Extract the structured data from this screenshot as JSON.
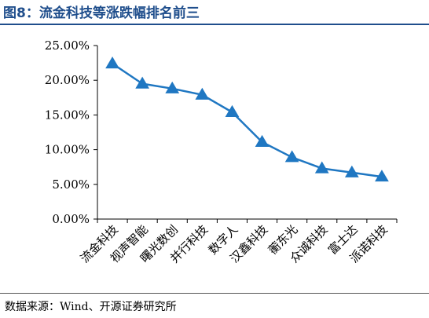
{
  "figure": {
    "title": "图8：流金科技等涨跌幅排名前三",
    "source": "数据来源：Wind、开源证券研究所"
  },
  "colors": {
    "title": "#1f4e8c",
    "series": "#1f77c2"
  },
  "chart_data": {
    "type": "line",
    "title": "",
    "xlabel": "",
    "ylabel": "",
    "categories": [
      "流金科技",
      "视声智能",
      "曙光数创",
      "并行科技",
      "数字人",
      "汉鑫科技",
      "蘅东光",
      "众诚科技",
      "富士达",
      "派诺科技"
    ],
    "series": [
      {
        "values": [
          22.4,
          19.5,
          18.8,
          17.9,
          15.4,
          11.1,
          8.9,
          7.3,
          6.7,
          6.1
        ],
        "marker": "triangle"
      }
    ],
    "ylim": [
      0,
      25
    ],
    "yticks": [
      "0.00%",
      "5.00%",
      "10.00%",
      "15.00%",
      "20.00%",
      "25.00%"
    ],
    "grid": false,
    "legend": "none"
  }
}
